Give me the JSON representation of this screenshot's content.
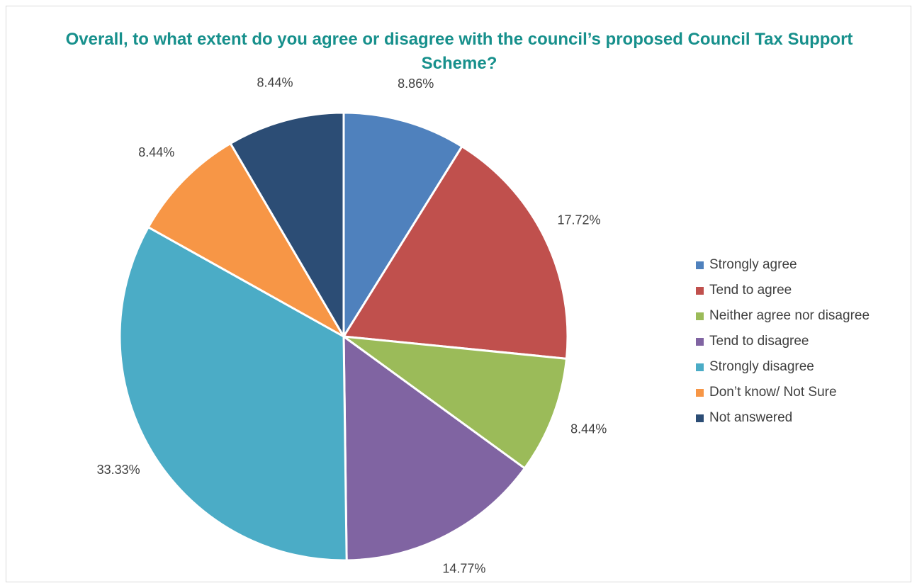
{
  "chart_data": {
    "type": "pie",
    "title": "Overall, to what extent do you agree or disagree with the council’s proposed Council Tax Support Scheme?",
    "categories": [
      "Strongly agree",
      "Tend to agree",
      "Neither agree nor disagree",
      "Tend to disagree",
      "Strongly disagree",
      "Don’t know/ Not Sure",
      "Not answered"
    ],
    "values": [
      8.86,
      17.72,
      8.44,
      14.77,
      33.33,
      8.44,
      8.44
    ],
    "data_labels": [
      "8.86%",
      "17.72%",
      "8.44%",
      "14.77%",
      "33.33%",
      "8.44%",
      "8.44%"
    ],
    "colors": [
      "#4f81bd",
      "#c0504d",
      "#9bbb59",
      "#8064a2",
      "#4bacc6",
      "#f79646",
      "#2c4d75"
    ],
    "legend_position": "right"
  }
}
